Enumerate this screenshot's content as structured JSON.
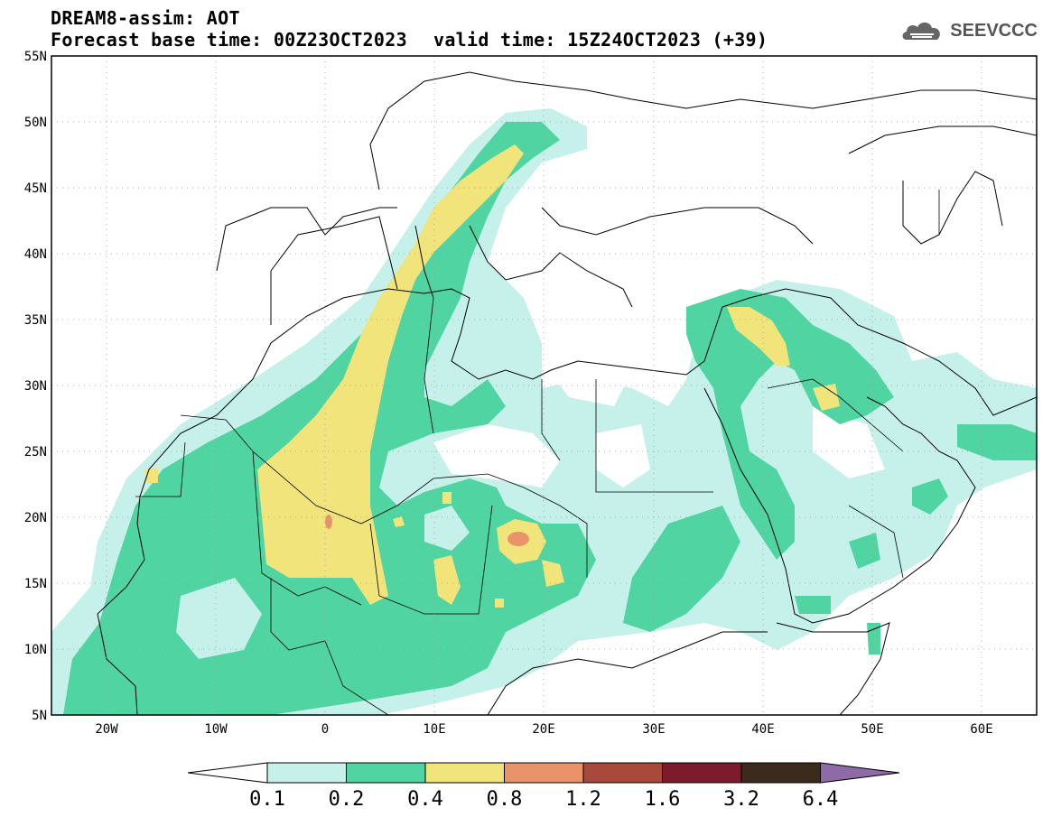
{
  "header": {
    "title": "DREAM8-assim: AOT",
    "base_time": "Forecast base time: 00Z23OCT2023",
    "valid_time": "valid time: 15Z24OCT2023 (+39)"
  },
  "logo": {
    "text": "SEEVCCC",
    "icon": "cloud-icon"
  },
  "map": {
    "lat_labels": [
      "55N",
      "50N",
      "45N",
      "40N",
      "35N",
      "30N",
      "25N",
      "20N",
      "15N",
      "10N",
      "5N"
    ],
    "lon_labels": [
      "20W",
      "10W",
      "0",
      "10E",
      "20E",
      "30E",
      "40E",
      "50E",
      "60E"
    ]
  },
  "colorbar": {
    "labels": [
      "0.1",
      "0.2",
      "0.4",
      "0.8",
      "1.2",
      "1.6",
      "3.2",
      "6.4"
    ],
    "colors": [
      "#ffffff",
      "#c6f1ea",
      "#4fd4a2",
      "#f1e47a",
      "#e9936a",
      "#a9493c",
      "#7b1b2c",
      "#3c2a1c",
      "#8e6aa6"
    ]
  }
}
